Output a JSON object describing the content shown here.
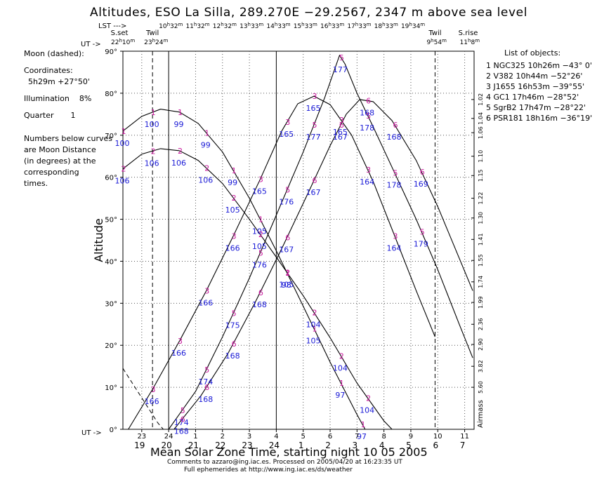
{
  "title": "Altitudes, ESO La Silla, 289.270E   −29.2567, 2347 m above sea level",
  "lst_label": "LST --->",
  "ut_top_label": "UT ->",
  "ut_bottom_label": "UT ->",
  "lst_ticks": [
    "10h32m",
    "11h32m",
    "12h32m",
    "13h33m",
    "14h33m",
    "15h33m",
    "16h33m",
    "17h33m",
    "18h33m",
    "19h34m"
  ],
  "events": [
    {
      "label": "S.set",
      "time": "22h10m",
      "x_ut": 22.17,
      "line": false
    },
    {
      "label": "Twil",
      "time": "23h24m",
      "x_ut": 23.4,
      "line": "dashed"
    },
    {
      "label": "Twil",
      "time": "9h54m",
      "x_ut": 33.9,
      "line": "dashed"
    },
    {
      "label": "S.rise",
      "time": "11h 8m",
      "x_ut": 35.13,
      "line": false
    }
  ],
  "left_panel": {
    "moon_label": "Moon (dashed):",
    "coordinates_label": "Coordinates:",
    "coordinates_value": "5h29m  +27°50'",
    "illumination_label": "Illumination",
    "illumination_value": "8%",
    "quarter_label": "Quarter",
    "quarter_value": "1",
    "note_lines": [
      "Numbers below curves",
      "are Moon Distance",
      "(in degrees) at the",
      "corresponding",
      "times."
    ]
  },
  "object_list_title": "List of objects:",
  "objects": [
    {
      "n": "1",
      "name": "NGC325",
      "ra": "10h26m",
      "dec": "−43° 0'"
    },
    {
      "n": "2",
      "name": "V382",
      "ra": "10h44m",
      "dec": "−52°26'"
    },
    {
      "n": "3",
      "name": "J1655",
      "ra": "16h53m",
      "dec": "−39°55'"
    },
    {
      "n": "4",
      "name": "GC1",
      "ra": "17h46m",
      "dec": "−28°52'"
    },
    {
      "n": "5",
      "name": "SgrB2",
      "ra": "17h47m",
      "dec": "−28°22'"
    },
    {
      "n": "6",
      "name": "PSR181",
      "ra": "18h16m",
      "dec": "−36°19'"
    }
  ],
  "footer": {
    "title": "Mean Solar Zone Time, starting night 10 05 2005",
    "line1": "Comments to azzaro@ing.iac.es. Processed on 2005/04/20 at 16:23:35 UT",
    "line2": "Full ephemerides at http://www.ing.iac.es/ds/weather"
  },
  "chart_data": {
    "type": "line",
    "ylabel": "Altitude",
    "xlabel": "Mean Solar Zone Time, starting night 10 05 2005",
    "ylim": [
      0,
      90
    ],
    "xlim": [
      22.3,
      35.35
    ],
    "y_ticks": [
      "0°",
      "10°",
      "20°",
      "30°",
      "40°",
      "50°",
      "60°",
      "70°",
      "80°",
      "90°"
    ],
    "ut_ticks": [
      "23",
      "24",
      "1",
      "2",
      "3",
      "4",
      "5",
      "6",
      "7",
      "8",
      "9",
      "10",
      "11"
    ],
    "local_ticks": [
      "19",
      "20",
      "21",
      "22",
      "23",
      "24",
      "1",
      "2",
      "3",
      "4",
      "5",
      "6",
      "7"
    ],
    "airmass_label": "Airmass",
    "airmass_ticks": [
      {
        "label": "1.02",
        "alt": 78.5
      },
      {
        "label": "1.04",
        "alt": 74
      },
      {
        "label": "1.06",
        "alt": 70.6
      },
      {
        "label": "1.10",
        "alt": 65
      },
      {
        "label": "1.15",
        "alt": 60.4
      },
      {
        "label": "1.22",
        "alt": 55
      },
      {
        "label": "1.30",
        "alt": 50.3
      },
      {
        "label": "1.41",
        "alt": 45.2
      },
      {
        "label": "1.55",
        "alt": 40.2
      },
      {
        "label": "1.74",
        "alt": 35.1
      },
      {
        "label": "1.99",
        "alt": 30.2
      },
      {
        "label": "2.36",
        "alt": 25
      },
      {
        "label": "2.90",
        "alt": 20.2
      },
      {
        "label": "3.82",
        "alt": 15
      },
      {
        "label": "5.60",
        "alt": 10
      }
    ],
    "series": [
      {
        "name": "1",
        "points": [
          [
            22.3,
            71
          ],
          [
            23.0,
            74.5
          ],
          [
            23.7,
            76.2
          ],
          [
            24.4,
            75.5
          ],
          [
            25.1,
            72.8
          ],
          [
            26.0,
            66
          ],
          [
            27.0,
            55
          ],
          [
            28.0,
            42.5
          ],
          [
            29.0,
            29.3
          ],
          [
            30.0,
            16
          ],
          [
            31.0,
            3.5
          ],
          [
            31.3,
            0
          ]
        ],
        "labels": [
          {
            "x": 22.3,
            "mark": "1",
            "dist": "100"
          },
          {
            "x": 23.4,
            "mark": "1",
            "dist": "100"
          },
          {
            "x": 24.4,
            "mark": "1",
            "dist": "99"
          },
          {
            "x": 25.4,
            "mark": "1",
            "dist": "99"
          },
          {
            "x": 26.4,
            "mark": "1",
            "dist": "99"
          },
          {
            "x": 27.4,
            "mark": "1",
            "dist": "105"
          },
          {
            "x": 28.4,
            "mark": "1",
            "dist": "98"
          },
          {
            "x": 29.4,
            "mark": "1",
            "dist": "105"
          },
          {
            "x": 30.4,
            "mark": "1",
            "dist": "97"
          },
          {
            "x": 31.2,
            "mark": "1",
            "dist": "97"
          }
        ]
      },
      {
        "name": "2",
        "points": [
          [
            22.3,
            62
          ],
          [
            23.0,
            65.5
          ],
          [
            23.7,
            66.8
          ],
          [
            24.4,
            66.3
          ],
          [
            25.1,
            64
          ],
          [
            26.0,
            58.5
          ],
          [
            27.0,
            50
          ],
          [
            28.0,
            41
          ],
          [
            29.0,
            31.8
          ],
          [
            30.0,
            21.8
          ],
          [
            31.0,
            11
          ],
          [
            32.0,
            2
          ],
          [
            32.3,
            0
          ]
        ],
        "labels": [
          {
            "x": 22.3,
            "mark": "2",
            "dist": "106"
          },
          {
            "x": 23.4,
            "mark": "2",
            "dist": "106"
          },
          {
            "x": 24.4,
            "mark": "2",
            "dist": "106"
          },
          {
            "x": 25.4,
            "mark": "2",
            "dist": "106"
          },
          {
            "x": 26.4,
            "mark": "2",
            "dist": "105"
          },
          {
            "x": 27.4,
            "mark": "2",
            "dist": "105"
          },
          {
            "x": 28.4,
            "mark": "2",
            "dist": "105"
          },
          {
            "x": 29.4,
            "mark": "2",
            "dist": "104"
          },
          {
            "x": 30.4,
            "mark": "2",
            "dist": "104"
          },
          {
            "x": 31.4,
            "mark": "2",
            "dist": "104"
          }
        ]
      },
      {
        "name": "3",
        "points": [
          [
            22.5,
            0
          ],
          [
            23.4,
            9.5
          ],
          [
            24.4,
            21
          ],
          [
            25.4,
            33
          ],
          [
            26.4,
            46
          ],
          [
            27.4,
            59.5
          ],
          [
            28.2,
            71
          ],
          [
            28.8,
            77.5
          ],
          [
            29.4,
            79.3
          ],
          [
            30.0,
            77.3
          ],
          [
            30.8,
            70
          ],
          [
            31.6,
            59
          ],
          [
            32.4,
            46
          ],
          [
            33.2,
            33
          ],
          [
            33.9,
            22
          ]
        ],
        "labels": [
          {
            "x": 23.4,
            "mark": "3",
            "dist": "166"
          },
          {
            "x": 24.4,
            "mark": "3",
            "dist": "166"
          },
          {
            "x": 25.4,
            "mark": "3",
            "dist": "166"
          },
          {
            "x": 26.4,
            "mark": "3",
            "dist": "166"
          },
          {
            "x": 27.4,
            "mark": "3",
            "dist": "165"
          },
          {
            "x": 28.4,
            "mark": "3",
            "dist": "165"
          },
          {
            "x": 29.4,
            "mark": "3",
            "dist": "165"
          },
          {
            "x": 30.4,
            "mark": "3",
            "dist": "165"
          },
          {
            "x": 31.4,
            "mark": "3",
            "dist": "164"
          },
          {
            "x": 32.4,
            "mark": "3",
            "dist": "164"
          }
        ]
      },
      {
        "name": "4/5",
        "points": [
          [
            24.0,
            0
          ],
          [
            25.0,
            9
          ],
          [
            26.0,
            22
          ],
          [
            27.0,
            36
          ],
          [
            28.0,
            51
          ],
          [
            29.0,
            66
          ],
          [
            29.8,
            79
          ],
          [
            30.35,
            89
          ],
          [
            30.55,
            87
          ],
          [
            31.0,
            80
          ],
          [
            31.6,
            72
          ],
          [
            32.4,
            61
          ],
          [
            33.2,
            50
          ],
          [
            34.0,
            38
          ],
          [
            34.8,
            25
          ],
          [
            35.3,
            17
          ]
        ],
        "labels": [
          {
            "x": 24.5,
            "mark": "5",
            "dist": "174"
          },
          {
            "x": 25.4,
            "mark": "5",
            "dist": "174"
          },
          {
            "x": 26.4,
            "mark": "5",
            "dist": "175"
          },
          {
            "x": 27.4,
            "mark": "5",
            "dist": "176"
          },
          {
            "x": 28.4,
            "mark": "5",
            "dist": "176"
          },
          {
            "x": 29.4,
            "mark": "5",
            "dist": "177"
          },
          {
            "x": 30.4,
            "mark": "5",
            "dist": "177"
          },
          {
            "x": 31.4,
            "mark": "5",
            "dist": "178"
          },
          {
            "x": 32.4,
            "mark": "5",
            "dist": "178"
          },
          {
            "x": 33.4,
            "mark": "5",
            "dist": "179"
          }
        ]
      },
      {
        "name": "6",
        "points": [
          [
            24.2,
            0
          ],
          [
            25.2,
            8
          ],
          [
            26.2,
            18
          ],
          [
            27.2,
            30
          ],
          [
            28.2,
            43
          ],
          [
            29.2,
            56.5
          ],
          [
            30.0,
            67.5
          ],
          [
            30.6,
            75
          ],
          [
            31.1,
            78.5
          ],
          [
            31.6,
            78
          ],
          [
            32.3,
            73.5
          ],
          [
            33.2,
            64
          ],
          [
            34.0,
            53
          ],
          [
            35.3,
            33
          ]
        ],
        "labels": [
          {
            "x": 24.5,
            "mark": "6",
            "dist": "168"
          },
          {
            "x": 25.4,
            "mark": "6",
            "dist": "168"
          },
          {
            "x": 26.4,
            "mark": "6",
            "dist": "168"
          },
          {
            "x": 27.4,
            "mark": "6",
            "dist": "168"
          },
          {
            "x": 28.4,
            "mark": "6",
            "dist": "167"
          },
          {
            "x": 29.4,
            "mark": "6",
            "dist": "167"
          },
          {
            "x": 30.4,
            "mark": "6",
            "dist": "167"
          },
          {
            "x": 31.4,
            "mark": "6",
            "dist": "168"
          },
          {
            "x": 32.4,
            "mark": "6",
            "dist": "168"
          },
          {
            "x": 33.4,
            "mark": "6",
            "dist": "169"
          }
        ]
      },
      {
        "name": "Moon (dashed)",
        "dashed": true,
        "points": [
          [
            22.3,
            14.5
          ],
          [
            23.0,
            7.5
          ],
          [
            23.6,
            1.5
          ],
          [
            23.8,
            0
          ]
        ]
      }
    ]
  }
}
